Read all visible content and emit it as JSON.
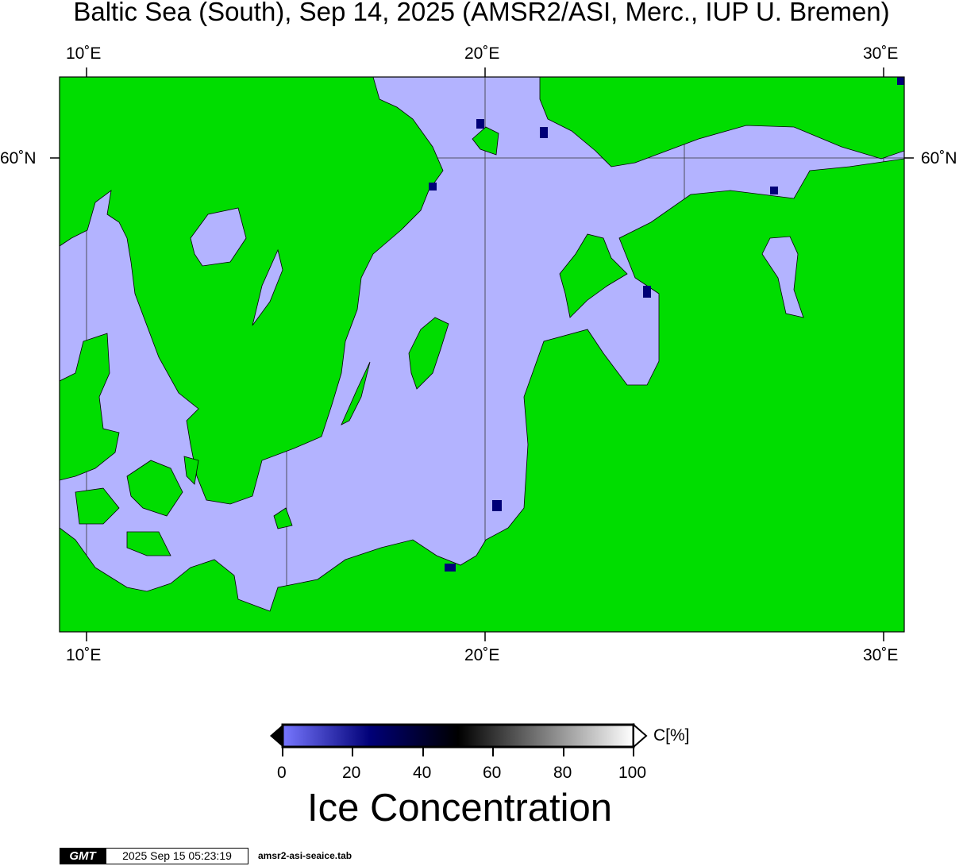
{
  "title": "Baltic Sea (South), Sep 14, 2025 (AMSR2/ASI, Merc., IUP U. Bremen)",
  "axes": {
    "top_lon_labels": [
      "10˚E",
      "20˚E",
      "30˚E"
    ],
    "bottom_lon_labels": [
      "10˚E",
      "20˚E",
      "30˚E"
    ],
    "left_lat_labels": [
      "60˚N"
    ],
    "right_lat_labels": [
      "60˚N"
    ]
  },
  "colors": {
    "land": "#00dd00",
    "sea_ice_free": "#b3b3ff",
    "coast": "#000000"
  },
  "colorbar": {
    "unit": "C[%]",
    "ticks": [
      "0",
      "20",
      "40",
      "60",
      "80",
      "100"
    ],
    "range": [
      0,
      100
    ],
    "label": "Ice Concentration",
    "stops": [
      "#7777ff",
      "#000077",
      "#000000",
      "#ffffff"
    ]
  },
  "footer": {
    "logo": "GMT",
    "timestamp": "2025 Sep 15 05:23:19",
    "file": "amsr2-asi-seaice.tab"
  }
}
